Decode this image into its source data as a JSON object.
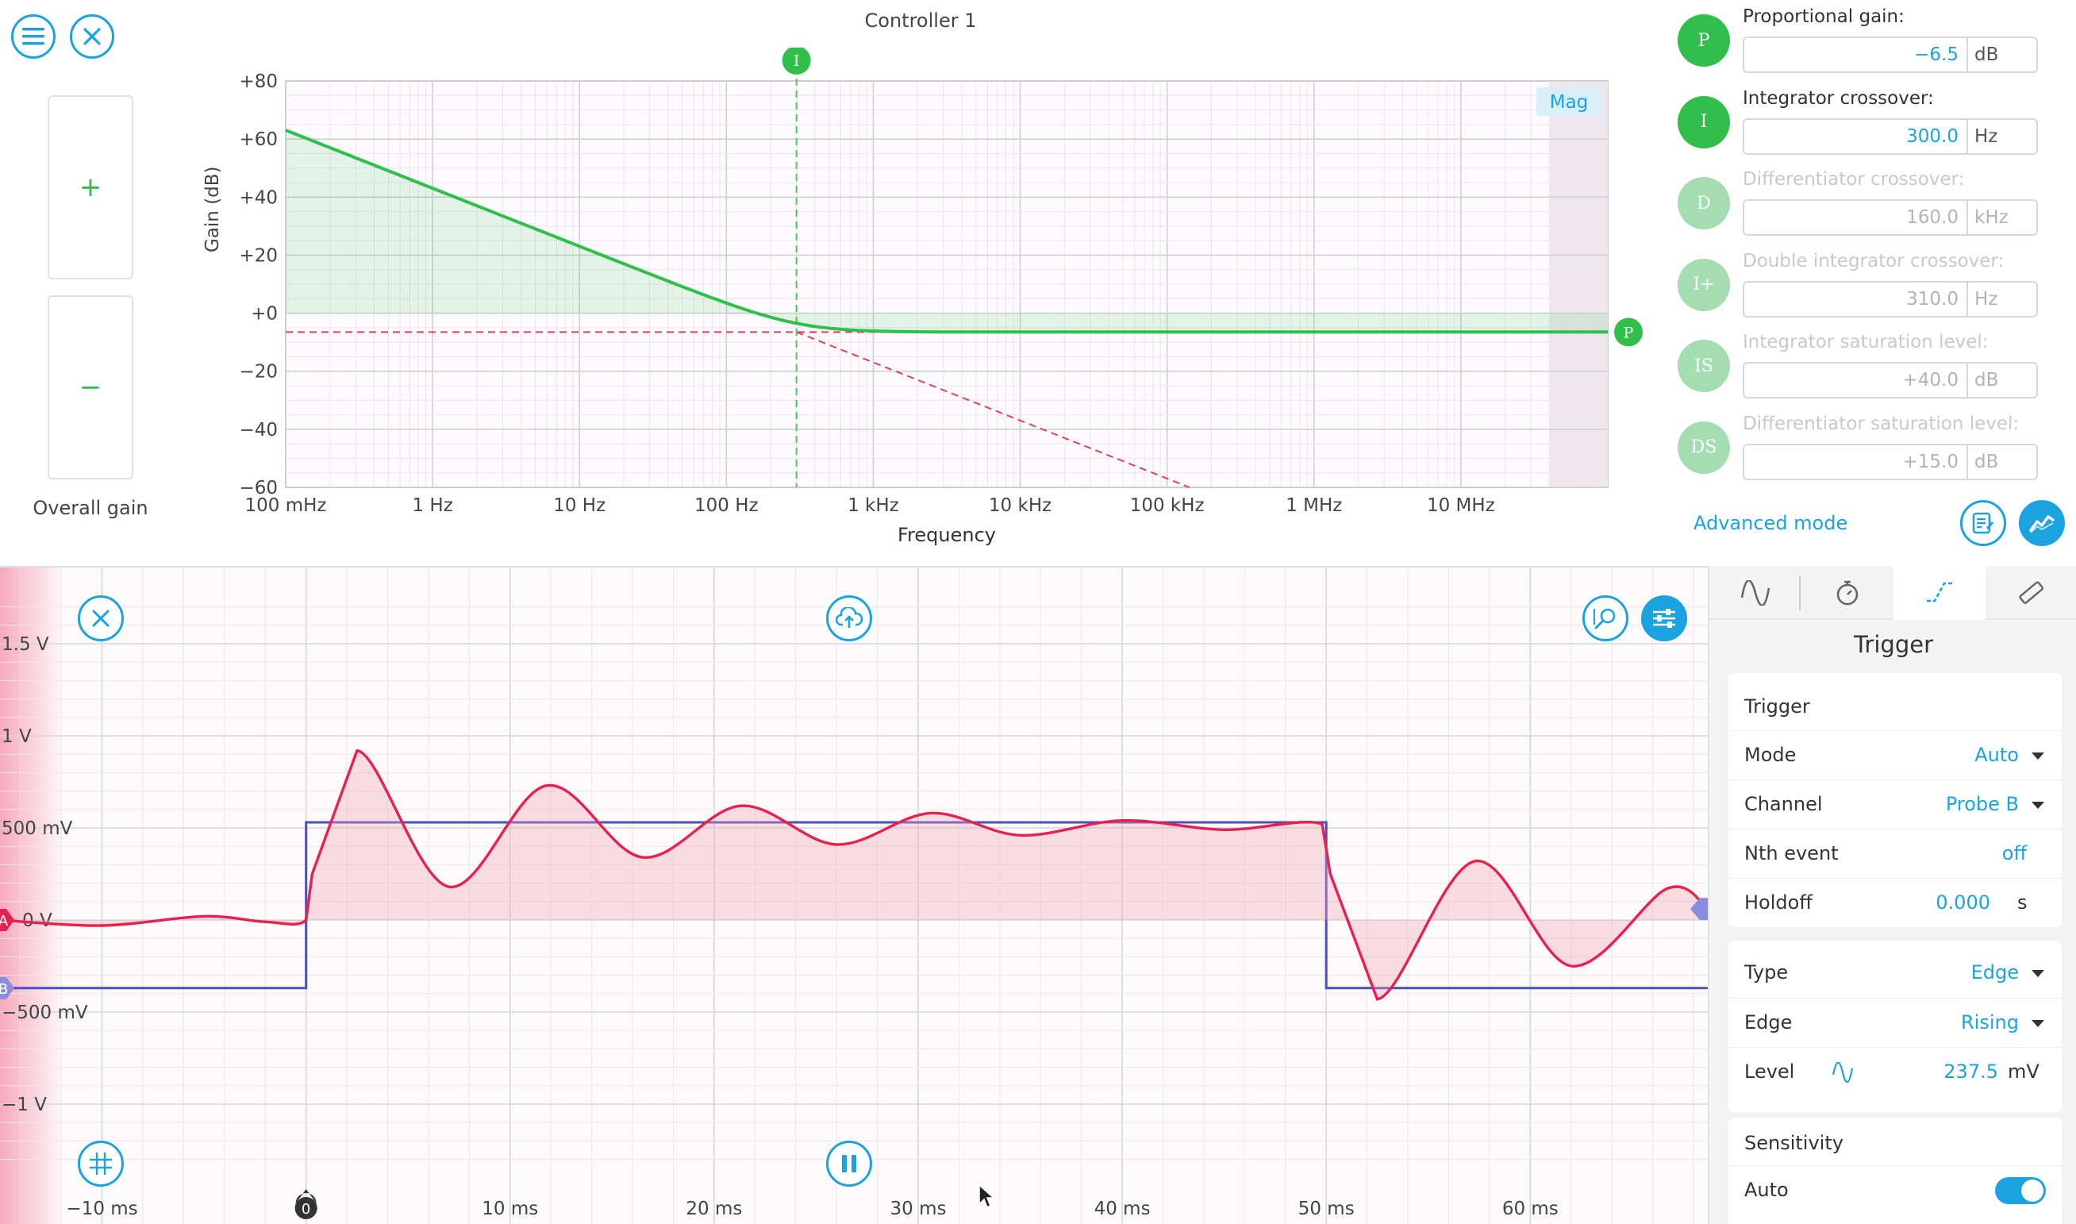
{
  "controller": {
    "title": "Controller 1",
    "overall_gain_label": "Overall gain",
    "plus_label": "+",
    "minus_label": "−",
    "plot": {
      "ylabel": "Gain (dB)",
      "xlabel": "Frequency",
      "yticks": [
        "+80",
        "+60",
        "+40",
        "+20",
        "+0",
        "−20",
        "−40",
        "−60"
      ],
      "xticks": [
        "100 mHz",
        "1 Hz",
        "10 Hz",
        "100 Hz",
        "1 kHz",
        "10 kHz",
        "100 kHz",
        "1 MHz",
        "10 MHz"
      ],
      "mag_label": "Mag",
      "marker_i": "I",
      "marker_p": "P"
    }
  },
  "chart_data": [
    {
      "type": "line",
      "xlabel": "Frequency",
      "ylabel": "Gain (dB)",
      "xscale": "log",
      "xlim_hz": [
        0.1,
        100000000
      ],
      "ylim": [
        -60,
        80
      ],
      "series": [
        {
          "x": [
            0.1,
            1,
            10,
            100,
            300,
            1000,
            10000,
            100000,
            1000000,
            10000000,
            100000000
          ],
          "y": [
            63.0,
            43.0,
            23.0,
            3.8,
            -3.5,
            -6.0,
            -6.5,
            -6.5,
            -6.5,
            -6.5,
            -6.5
          ]
        }
      ],
      "reference_lines": {
        "proportional_db": -6.5,
        "integrator_crossover_hz": 300
      },
      "grid": true
    },
    {
      "type": "line",
      "xlabel": "",
      "ylabel": "",
      "xticks": [
        "−10 ms",
        "0",
        "10 ms",
        "20 ms",
        "30 ms",
        "40 ms",
        "50 ms",
        "60 ms"
      ],
      "yticks": [
        "1.5 V",
        "1 V",
        "500 mV",
        "0 V",
        "−500 mV",
        "−1 V"
      ],
      "xlim_ms": [
        -15,
        68.7
      ],
      "ylim_v": [
        -1.3,
        1.5
      ],
      "series": [
        {
          "channel": "A",
          "color": "#e8204e",
          "t_ms": [
            -15,
            -10,
            -5,
            -2,
            0,
            0.3,
            2.5,
            7,
            11.8,
            16.5,
            21.3,
            26,
            30.6,
            35,
            40,
            45,
            49.8,
            50.2,
            52.5,
            57.3,
            62,
            66.7,
            68.7
          ],
          "v": [
            0.0,
            -0.03,
            0.02,
            -0.01,
            0.0,
            0.25,
            0.92,
            0.18,
            0.73,
            0.34,
            0.62,
            0.41,
            0.58,
            0.46,
            0.54,
            0.49,
            0.52,
            0.25,
            -0.43,
            0.32,
            -0.25,
            0.17,
            0.06
          ]
        },
        {
          "channel": "B",
          "color": "#4b4fc4",
          "t_ms": [
            -15,
            0,
            0,
            50,
            50,
            68.7
          ],
          "v": [
            -0.37,
            -0.37,
            0.53,
            0.53,
            -0.37,
            -0.37
          ]
        }
      ],
      "channel_markers": {
        "a_label": "A",
        "b_label": "B",
        "trigger_marker": "0"
      },
      "grid": true
    }
  ],
  "pid": {
    "rows": [
      {
        "symbol": "P",
        "label": "Proportional gain:",
        "value": "−6.5",
        "unit": "dB",
        "enabled": true
      },
      {
        "symbol": "I",
        "label": "Integrator crossover:",
        "value": "300.0",
        "unit": "Hz",
        "enabled": true
      },
      {
        "symbol": "D",
        "label": "Differentiator crossover:",
        "value": "160.0",
        "unit": "kHz",
        "enabled": false
      },
      {
        "symbol": "I+",
        "label": "Double integrator crossover:",
        "value": "310.0",
        "unit": "Hz",
        "enabled": false
      },
      {
        "symbol": "IS",
        "label": "Integrator saturation level:",
        "value": "+40.0",
        "unit": "dB",
        "enabled": false
      },
      {
        "symbol": "DS",
        "label": "Differentiator saturation level:",
        "value": "+15.0",
        "unit": "dB",
        "enabled": false
      }
    ],
    "advanced_mode": "Advanced mode"
  },
  "trigger": {
    "title": "Trigger",
    "card1": {
      "head": "Trigger",
      "mode_label": "Mode",
      "mode_value": "Auto",
      "channel_label": "Channel",
      "channel_value": "Probe B",
      "nth_label": "Nth event",
      "nth_value": "off",
      "holdoff_label": "Holdoff",
      "holdoff_value": "0.000",
      "holdoff_unit": "s"
    },
    "card2": {
      "type_label": "Type",
      "type_value": "Edge",
      "edge_label": "Edge",
      "edge_value": "Rising",
      "level_label": "Level",
      "level_value": "237.5",
      "level_unit": "mV"
    },
    "card3": {
      "head": "Sensitivity",
      "auto_label": "Auto",
      "auto_on": true
    }
  },
  "colors": {
    "accent": "#1ba3e0",
    "green": "#2fbf4a",
    "channel_a": "#e8204e",
    "channel_b": "#4b4fc4"
  }
}
